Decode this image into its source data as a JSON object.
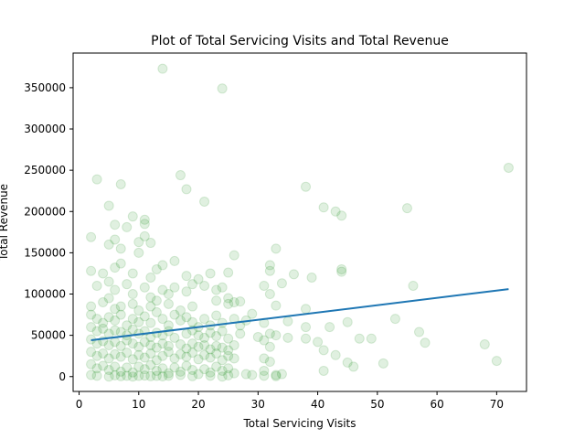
{
  "chart_data": {
    "type": "scatter",
    "title": "Plot of Total Servicing Visits and Total Revenue",
    "xlabel": "Total Servicing Visits",
    "ylabel": "Total Revenue",
    "xlim": [
      -1,
      75
    ],
    "ylim": [
      -18000,
      392000
    ],
    "x_ticks": [
      0,
      10,
      20,
      30,
      40,
      50,
      60,
      70
    ],
    "y_ticks": [
      0,
      50000,
      100000,
      150000,
      200000,
      250000,
      300000,
      350000
    ],
    "grid": false,
    "point_color": "#008000",
    "point_alpha": 0.12,
    "line_color": "#1f77b4",
    "regression_line": {
      "x": [
        2,
        72
      ],
      "y": [
        44000,
        106000
      ]
    },
    "points": [
      [
        14,
        373000
      ],
      [
        24,
        349000
      ],
      [
        72,
        253000
      ],
      [
        3,
        239000
      ],
      [
        7,
        233000
      ],
      [
        17,
        244000
      ],
      [
        18,
        227000
      ],
      [
        21,
        212000
      ],
      [
        38,
        230000
      ],
      [
        5,
        207000
      ],
      [
        41,
        205000
      ],
      [
        43,
        200000
      ],
      [
        44,
        195000
      ],
      [
        55,
        204000
      ],
      [
        9,
        194000
      ],
      [
        11,
        190000
      ],
      [
        11,
        185000
      ],
      [
        6,
        184000
      ],
      [
        8,
        181000
      ],
      [
        2,
        169000
      ],
      [
        6,
        166000
      ],
      [
        10,
        163000
      ],
      [
        12,
        162000
      ],
      [
        11,
        170000
      ],
      [
        5,
        160000
      ],
      [
        7,
        155000
      ],
      [
        10,
        150000
      ],
      [
        26,
        147000
      ],
      [
        33,
        155000
      ],
      [
        2,
        128000
      ],
      [
        4,
        125000
      ],
      [
        6,
        132000
      ],
      [
        7,
        137000
      ],
      [
        9,
        125000
      ],
      [
        12,
        120000
      ],
      [
        13,
        130000
      ],
      [
        14,
        135000
      ],
      [
        16,
        140000
      ],
      [
        18,
        122000
      ],
      [
        20,
        118000
      ],
      [
        22,
        125000
      ],
      [
        25,
        126000
      ],
      [
        32,
        135000
      ],
      [
        32,
        128000
      ],
      [
        36,
        124000
      ],
      [
        39,
        120000
      ],
      [
        44,
        130000
      ],
      [
        44,
        127000
      ],
      [
        56,
        110000
      ],
      [
        3,
        110000
      ],
      [
        5,
        115000
      ],
      [
        6,
        105000
      ],
      [
        8,
        112000
      ],
      [
        9,
        100000
      ],
      [
        11,
        108000
      ],
      [
        12,
        96000
      ],
      [
        14,
        105000
      ],
      [
        15,
        100000
      ],
      [
        16,
        108000
      ],
      [
        18,
        103000
      ],
      [
        19,
        112000
      ],
      [
        21,
        110000
      ],
      [
        23,
        105000
      ],
      [
        24,
        108000
      ],
      [
        25,
        95000
      ],
      [
        27,
        91000
      ],
      [
        31,
        110000
      ],
      [
        32,
        100000
      ],
      [
        34,
        113000
      ],
      [
        2,
        85000
      ],
      [
        4,
        90000
      ],
      [
        5,
        95000
      ],
      [
        6,
        82000
      ],
      [
        7,
        85000
      ],
      [
        9,
        88000
      ],
      [
        10,
        80000
      ],
      [
        12,
        85000
      ],
      [
        13,
        92000
      ],
      [
        15,
        88000
      ],
      [
        17,
        80000
      ],
      [
        19,
        85000
      ],
      [
        23,
        92000
      ],
      [
        25,
        88000
      ],
      [
        26,
        90000
      ],
      [
        29,
        76000
      ],
      [
        33,
        86000
      ],
      [
        38,
        82000
      ],
      [
        2,
        75000
      ],
      [
        3,
        70000
      ],
      [
        4,
        65000
      ],
      [
        5,
        72000
      ],
      [
        6,
        68000
      ],
      [
        7,
        75000
      ],
      [
        8,
        62000
      ],
      [
        9,
        70000
      ],
      [
        10,
        66000
      ],
      [
        11,
        73000
      ],
      [
        12,
        65000
      ],
      [
        13,
        78000
      ],
      [
        14,
        70000
      ],
      [
        15,
        62000
      ],
      [
        16,
        75000
      ],
      [
        17,
        68000
      ],
      [
        18,
        72000
      ],
      [
        19,
        66000
      ],
      [
        20,
        60000
      ],
      [
        21,
        70000
      ],
      [
        22,
        62000
      ],
      [
        23,
        74000
      ],
      [
        24,
        65000
      ],
      [
        26,
        70000
      ],
      [
        27,
        62000
      ],
      [
        28,
        68000
      ],
      [
        31,
        65000
      ],
      [
        35,
        67000
      ],
      [
        38,
        60000
      ],
      [
        45,
        66000
      ],
      [
        53,
        70000
      ],
      [
        2,
        60000
      ],
      [
        3,
        55000
      ],
      [
        4,
        58000
      ],
      [
        5,
        52000
      ],
      [
        6,
        56000
      ],
      [
        7,
        54000
      ],
      [
        8,
        50000
      ],
      [
        9,
        57000
      ],
      [
        10,
        52000
      ],
      [
        11,
        55000
      ],
      [
        12,
        48000
      ],
      [
        13,
        53000
      ],
      [
        14,
        50000
      ],
      [
        15,
        55000
      ],
      [
        16,
        47000
      ],
      [
        18,
        52000
      ],
      [
        19,
        56000
      ],
      [
        20,
        50000
      ],
      [
        21,
        47000
      ],
      [
        22,
        53000
      ],
      [
        23,
        49000
      ],
      [
        24,
        55000
      ],
      [
        25,
        46000
      ],
      [
        27,
        52000
      ],
      [
        30,
        48000
      ],
      [
        32,
        52000
      ],
      [
        33,
        50000
      ],
      [
        35,
        47000
      ],
      [
        38,
        46000
      ],
      [
        40,
        42000
      ],
      [
        42,
        60000
      ],
      [
        47,
        46000
      ],
      [
        49,
        46000
      ],
      [
        57,
        54000
      ],
      [
        58,
        41000
      ],
      [
        2,
        45000
      ],
      [
        3,
        40000
      ],
      [
        4,
        43000
      ],
      [
        5,
        38000
      ],
      [
        6,
        42000
      ],
      [
        7,
        37000
      ],
      [
        8,
        44000
      ],
      [
        9,
        40000
      ],
      [
        10,
        36000
      ],
      [
        11,
        42000
      ],
      [
        12,
        38000
      ],
      [
        13,
        35000
      ],
      [
        14,
        40000
      ],
      [
        15,
        37000
      ],
      [
        17,
        39000
      ],
      [
        18,
        34000
      ],
      [
        19,
        40000
      ],
      [
        20,
        36000
      ],
      [
        21,
        38000
      ],
      [
        22,
        33000
      ],
      [
        23,
        37000
      ],
      [
        24,
        35000
      ],
      [
        25,
        32000
      ],
      [
        26,
        38000
      ],
      [
        31,
        44000
      ],
      [
        32,
        36000
      ],
      [
        41,
        32000
      ],
      [
        68,
        39000
      ],
      [
        2,
        30000
      ],
      [
        3,
        25000
      ],
      [
        4,
        28000
      ],
      [
        5,
        22000
      ],
      [
        6,
        27000
      ],
      [
        7,
        24000
      ],
      [
        8,
        29000
      ],
      [
        9,
        21000
      ],
      [
        10,
        26000
      ],
      [
        11,
        23000
      ],
      [
        12,
        28000
      ],
      [
        13,
        20000
      ],
      [
        14,
        25000
      ],
      [
        15,
        30000
      ],
      [
        16,
        22000
      ],
      [
        17,
        27000
      ],
      [
        18,
        24000
      ],
      [
        19,
        29000
      ],
      [
        20,
        21000
      ],
      [
        21,
        26000
      ],
      [
        22,
        23000
      ],
      [
        23,
        28000
      ],
      [
        24,
        20000
      ],
      [
        25,
        25000
      ],
      [
        26,
        22000
      ],
      [
        31,
        22000
      ],
      [
        32,
        18000
      ],
      [
        43,
        26000
      ],
      [
        45,
        17000
      ],
      [
        46,
        12000
      ],
      [
        51,
        16000
      ],
      [
        70,
        19000
      ],
      [
        2,
        15000
      ],
      [
        3,
        10000
      ],
      [
        4,
        13000
      ],
      [
        5,
        8000
      ],
      [
        6,
        12000
      ],
      [
        7,
        6000
      ],
      [
        8,
        11000
      ],
      [
        9,
        5000
      ],
      [
        10,
        12000
      ],
      [
        11,
        9000
      ],
      [
        12,
        14000
      ],
      [
        13,
        7000
      ],
      [
        14,
        10000
      ],
      [
        15,
        4000
      ],
      [
        16,
        11000
      ],
      [
        17,
        6000
      ],
      [
        18,
        13000
      ],
      [
        19,
        8000
      ],
      [
        20,
        3000
      ],
      [
        21,
        9000
      ],
      [
        22,
        5000
      ],
      [
        23,
        12000
      ],
      [
        24,
        7000
      ],
      [
        25,
        10000
      ],
      [
        26,
        4000
      ],
      [
        28,
        3000
      ],
      [
        29,
        2000
      ],
      [
        31,
        7000
      ],
      [
        33,
        2000
      ],
      [
        34,
        3000
      ],
      [
        41,
        7000
      ],
      [
        2,
        2000
      ],
      [
        3,
        1000
      ],
      [
        5,
        0
      ],
      [
        6,
        1500
      ],
      [
        7,
        500
      ],
      [
        8,
        1000
      ],
      [
        9,
        0
      ],
      [
        10,
        800
      ],
      [
        11,
        1200
      ],
      [
        12,
        500
      ],
      [
        13,
        900
      ],
      [
        14,
        300
      ],
      [
        15,
        1000
      ],
      [
        17,
        2000
      ],
      [
        19,
        500
      ],
      [
        22,
        1000
      ],
      [
        24,
        0
      ],
      [
        25,
        1500
      ],
      [
        31,
        1000
      ],
      [
        33,
        500
      ]
    ]
  }
}
